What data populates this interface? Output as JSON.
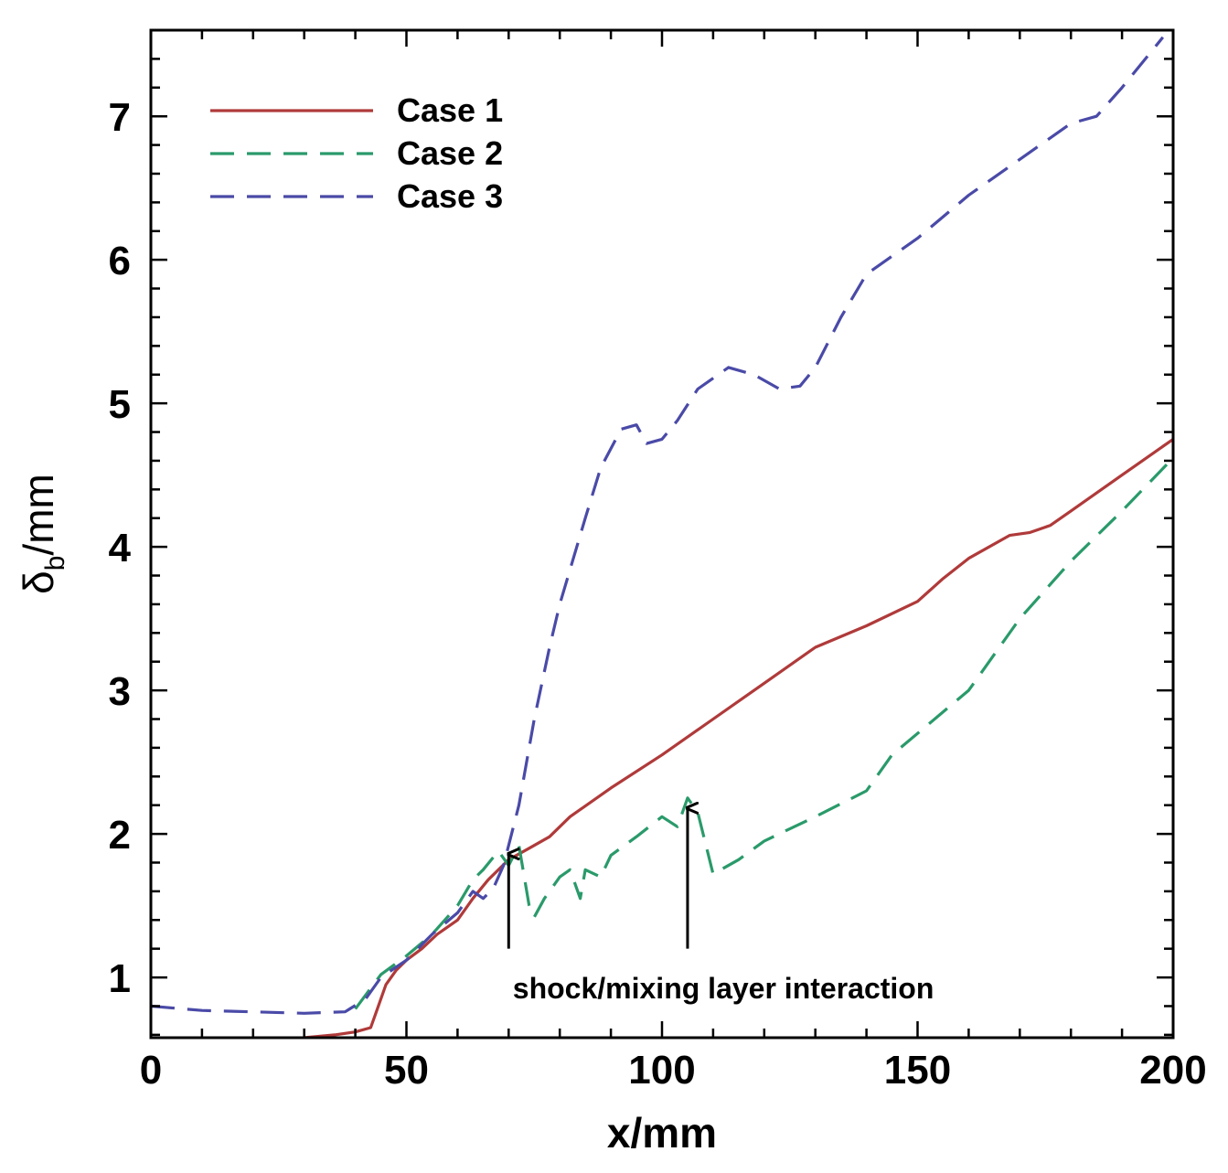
{
  "chart_data": {
    "type": "line",
    "title": "",
    "xlabel": "x/mm",
    "ylabel": {
      "base": "δ",
      "sub": "b",
      "rest": "/mm"
    },
    "xlim": [
      0,
      200
    ],
    "ylim": [
      0.58,
      7.6
    ],
    "xticks": [
      0,
      50,
      100,
      150,
      200
    ],
    "yticks": [
      1,
      2,
      3,
      4,
      5,
      6,
      7
    ],
    "legend_position": "top-left",
    "series": [
      {
        "name": "Case 1",
        "color": "#b03a3a",
        "dash": "solid",
        "x": [
          30,
          36,
          40,
          43,
          44,
          46,
          48,
          50,
          53,
          56,
          60,
          63,
          66,
          70,
          74,
          78,
          82,
          90,
          100,
          110,
          120,
          130,
          140,
          150,
          155,
          160,
          168,
          172,
          176,
          180,
          190,
          200
        ],
        "y": [
          0.58,
          0.6,
          0.62,
          0.65,
          0.75,
          0.95,
          1.05,
          1.12,
          1.2,
          1.3,
          1.4,
          1.55,
          1.68,
          1.82,
          1.9,
          1.98,
          2.12,
          2.32,
          2.55,
          2.8,
          3.05,
          3.3,
          3.45,
          3.62,
          3.78,
          3.92,
          4.08,
          4.1,
          4.15,
          4.25,
          4.5,
          4.75
        ]
      },
      {
        "name": "Case 2",
        "color": "#2a9a6a",
        "dash": "dashed",
        "x": [
          40,
          45,
          50,
          55,
          60,
          63,
          65,
          68,
          70,
          72,
          74,
          75,
          77,
          80,
          82,
          84,
          85,
          88,
          90,
          95,
          100,
          103,
          105,
          107,
          110,
          115,
          120,
          130,
          140,
          145,
          150,
          160,
          170,
          180,
          190,
          200
        ],
        "y": [
          0.78,
          1.02,
          1.15,
          1.3,
          1.5,
          1.68,
          1.75,
          1.88,
          1.78,
          1.92,
          1.5,
          1.42,
          1.55,
          1.7,
          1.75,
          1.55,
          1.75,
          1.7,
          1.85,
          1.98,
          2.12,
          2.05,
          2.25,
          2.15,
          1.72,
          1.82,
          1.95,
          2.12,
          2.3,
          2.55,
          2.7,
          3.0,
          3.5,
          3.9,
          4.25,
          4.62
        ]
      },
      {
        "name": "Case 3",
        "color": "#4a4aa8",
        "dash": "dashed",
        "x": [
          0,
          10,
          20,
          30,
          38,
          42,
          45,
          50,
          55,
          60,
          63,
          65,
          67,
          69,
          70,
          72,
          75,
          78,
          80,
          85,
          88,
          92,
          95,
          97,
          100,
          103,
          107,
          113,
          118,
          123,
          127,
          130,
          135,
          140,
          150,
          160,
          170,
          180,
          185,
          190,
          198
        ],
        "y": [
          0.8,
          0.77,
          0.76,
          0.75,
          0.76,
          0.85,
          1.0,
          1.12,
          1.3,
          1.45,
          1.6,
          1.55,
          1.62,
          1.78,
          1.92,
          2.2,
          2.8,
          3.3,
          3.6,
          4.2,
          4.55,
          4.82,
          4.85,
          4.72,
          4.75,
          4.88,
          5.1,
          5.25,
          5.2,
          5.1,
          5.12,
          5.25,
          5.6,
          5.9,
          6.15,
          6.45,
          6.7,
          6.95,
          7.0,
          7.2,
          7.55
        ]
      }
    ],
    "annotations": [
      {
        "text": "shock/mixing layer interaction",
        "x": 112,
        "y": 0.93
      },
      {
        "type": "arrow",
        "x": 70,
        "y_from": 1.2,
        "y_to": 1.86
      },
      {
        "type": "arrow",
        "x": 105,
        "y_from": 1.2,
        "y_to": 2.18
      }
    ]
  }
}
